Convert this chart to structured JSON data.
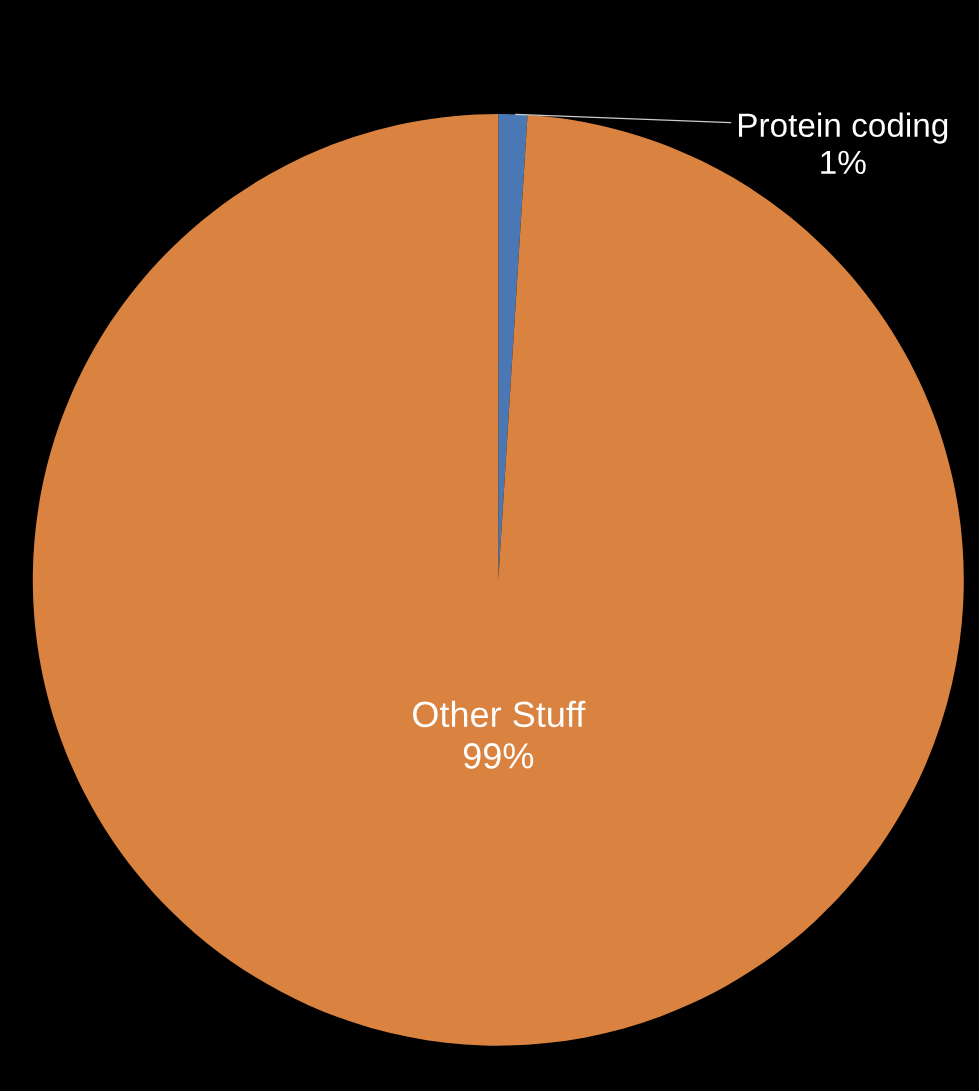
{
  "chart_data": {
    "type": "pie",
    "categories": [
      "Protein coding",
      "Other Stuff"
    ],
    "values": [
      1,
      99
    ],
    "colors": [
      "#4a78b5",
      "#da823f"
    ],
    "value_labels": [
      "1%",
      "99%"
    ],
    "legend": false
  }
}
